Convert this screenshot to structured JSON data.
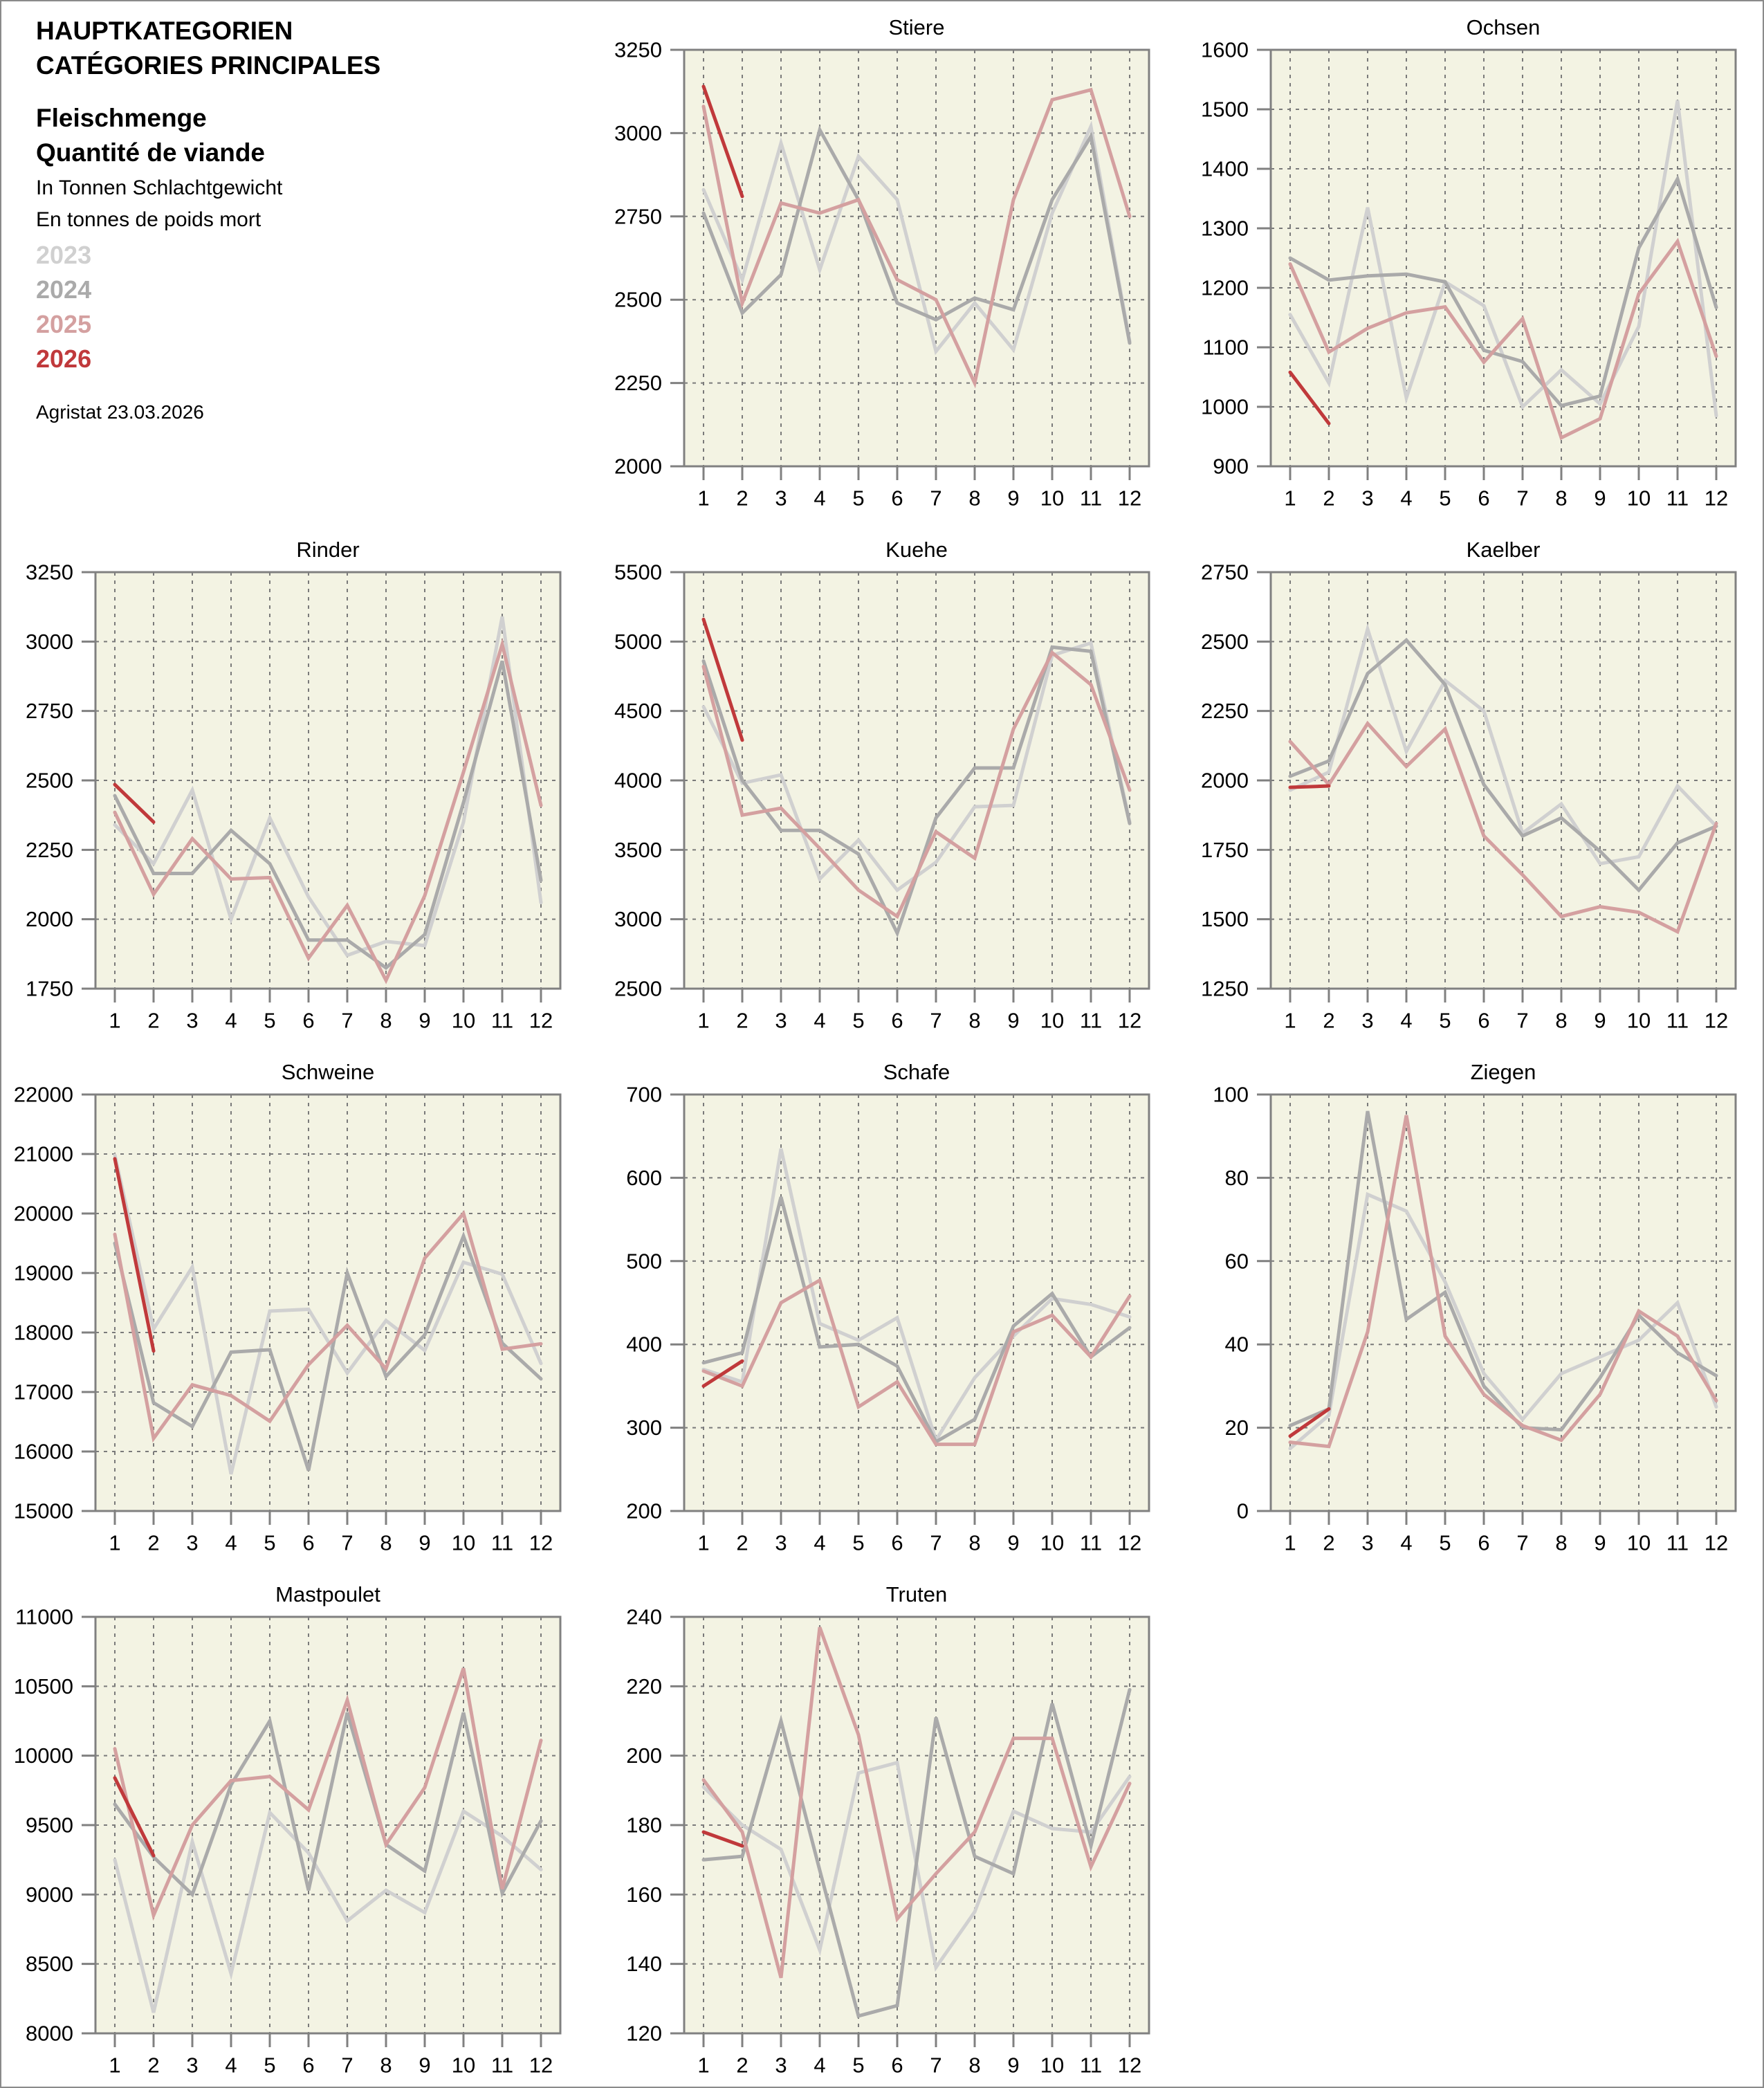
{
  "header": {
    "title_de": "HAUPTKATEGORIEN",
    "title_fr": "CATÉGORIES PRINCIPALES",
    "measure_de": "Fleischmenge",
    "measure_fr": "Quantité de viande",
    "unit_de": "In Tonnen Schlachtgewicht",
    "unit_fr": "En tonnes de poids mort",
    "source": "Agristat 23.03.2026"
  },
  "legend": [
    {
      "label": "2023",
      "color": "#d0d0d0"
    },
    {
      "label": "2024",
      "color": "#aaaaaa"
    },
    {
      "label": "2025",
      "color": "#d4a0a0"
    },
    {
      "label": "2026",
      "color": "#c0393b"
    }
  ],
  "colors": {
    "plot_background": "#f3f3e3",
    "axis": "#808080",
    "grid": "#7a7a7a"
  },
  "chart_data": [
    {
      "type": "line",
      "title": "Stiere",
      "xlabel": "",
      "ylabel": "",
      "categories": [
        "1",
        "2",
        "3",
        "4",
        "5",
        "6",
        "7",
        "8",
        "9",
        "10",
        "11",
        "12"
      ],
      "ylim": [
        2000,
        3250
      ],
      "yticks": [
        2000,
        2250,
        2500,
        2750,
        3000,
        3250
      ],
      "grid": true,
      "series": [
        {
          "name": "2023",
          "values": [
            2830,
            2560,
            2970,
            2590,
            2930,
            2800,
            2345,
            2490,
            2350,
            2760,
            3020,
            2375
          ]
        },
        {
          "name": "2024",
          "values": [
            2760,
            2460,
            2575,
            3010,
            2800,
            2490,
            2440,
            2505,
            2470,
            2800,
            2990,
            2370
          ]
        },
        {
          "name": "2025",
          "values": [
            3080,
            2490,
            2790,
            2760,
            2800,
            2560,
            2500,
            2250,
            2800,
            3100,
            3130,
            2750
          ]
        },
        {
          "name": "2026",
          "values": [
            3140,
            2810
          ]
        }
      ]
    },
    {
      "type": "line",
      "title": "Ochsen",
      "xlabel": "",
      "ylabel": "",
      "categories": [
        "1",
        "2",
        "3",
        "4",
        "5",
        "6",
        "7",
        "8",
        "9",
        "10",
        "11",
        "12"
      ],
      "ylim": [
        900,
        1600
      ],
      "yticks": [
        900,
        1000,
        1100,
        1200,
        1300,
        1400,
        1500,
        1600
      ],
      "grid": true,
      "series": [
        {
          "name": "2023",
          "values": [
            1155,
            1040,
            1335,
            1015,
            1210,
            1170,
            1000,
            1062,
            1005,
            1135,
            1515,
            985
          ]
        },
        {
          "name": "2024",
          "values": [
            1250,
            1213,
            1220,
            1223,
            1210,
            1095,
            1076,
            1002,
            1018,
            1267,
            1383,
            1167
          ]
        },
        {
          "name": "2025",
          "values": [
            1240,
            1092,
            1132,
            1158,
            1168,
            1075,
            1148,
            948,
            980,
            1190,
            1278,
            1085
          ]
        },
        {
          "name": "2026",
          "values": [
            1058,
            972
          ]
        }
      ]
    },
    {
      "type": "line",
      "title": "Rinder",
      "xlabel": "",
      "ylabel": "",
      "categories": [
        "1",
        "2",
        "3",
        "4",
        "5",
        "6",
        "7",
        "8",
        "9",
        "10",
        "11",
        "12"
      ],
      "ylim": [
        1750,
        3250
      ],
      "yticks": [
        1750,
        2000,
        2250,
        2500,
        2750,
        3000,
        3250
      ],
      "grid": true,
      "series": [
        {
          "name": "2023",
          "values": [
            2340,
            2200,
            2465,
            2000,
            2365,
            2080,
            1870,
            1920,
            1905,
            2350,
            3090,
            2060
          ]
        },
        {
          "name": "2024",
          "values": [
            2445,
            2165,
            2165,
            2320,
            2200,
            1925,
            1925,
            1825,
            1945,
            2420,
            2930,
            2140
          ]
        },
        {
          "name": "2025",
          "values": [
            2385,
            2090,
            2290,
            2145,
            2150,
            1860,
            2050,
            1780,
            2085,
            2530,
            2990,
            2410
          ]
        },
        {
          "name": "2026",
          "values": [
            2485,
            2350
          ]
        }
      ]
    },
    {
      "type": "line",
      "title": "Kuehe",
      "xlabel": "",
      "ylabel": "",
      "categories": [
        "1",
        "2",
        "3",
        "4",
        "5",
        "6",
        "7",
        "8",
        "9",
        "10",
        "11",
        "12"
      ],
      "ylim": [
        2500,
        5500
      ],
      "yticks": [
        2500,
        3000,
        3500,
        4000,
        4500,
        5000,
        5500
      ],
      "grid": true,
      "series": [
        {
          "name": "2023",
          "values": [
            4530,
            3980,
            4040,
            3290,
            3570,
            3210,
            3410,
            3810,
            3820,
            4900,
            4990,
            3700
          ]
        },
        {
          "name": "2024",
          "values": [
            4860,
            4000,
            3640,
            3640,
            3470,
            2900,
            3730,
            4090,
            4090,
            4960,
            4930,
            3690
          ]
        },
        {
          "name": "2025",
          "values": [
            4820,
            3750,
            3800,
            3510,
            3210,
            3020,
            3630,
            3440,
            4370,
            4920,
            4690,
            3930
          ]
        },
        {
          "name": "2026",
          "values": [
            5160,
            4290
          ]
        }
      ]
    },
    {
      "type": "line",
      "title": "Kaelber",
      "xlabel": "",
      "ylabel": "",
      "categories": [
        "1",
        "2",
        "3",
        "4",
        "5",
        "6",
        "7",
        "8",
        "9",
        "10",
        "11",
        "12"
      ],
      "ylim": [
        1250,
        2750
      ],
      "yticks": [
        1250,
        1500,
        1750,
        2000,
        2250,
        2500,
        2750
      ],
      "grid": true,
      "series": [
        {
          "name": "2023",
          "values": [
            1965,
            2030,
            2545,
            2105,
            2360,
            2250,
            1810,
            1915,
            1700,
            1725,
            1980,
            1835
          ]
        },
        {
          "name": "2024",
          "values": [
            2015,
            2070,
            2385,
            2505,
            2345,
            1985,
            1800,
            1865,
            1745,
            1605,
            1775,
            1835
          ]
        },
        {
          "name": "2025",
          "values": [
            2140,
            1985,
            2205,
            2050,
            2185,
            1800,
            1660,
            1510,
            1545,
            1525,
            1455,
            1845
          ]
        },
        {
          "name": "2026",
          "values": [
            1975,
            1980
          ]
        }
      ]
    },
    {
      "type": "line",
      "title": "Schweine",
      "xlabel": "",
      "ylabel": "",
      "categories": [
        "1",
        "2",
        "3",
        "4",
        "5",
        "6",
        "7",
        "8",
        "9",
        "10",
        "11",
        "12"
      ],
      "ylim": [
        15000,
        22000
      ],
      "yticks": [
        15000,
        16000,
        17000,
        18000,
        19000,
        20000,
        21000,
        22000
      ],
      "grid": true,
      "series": [
        {
          "name": "2023",
          "values": [
            20980,
            18060,
            19100,
            15620,
            18360,
            18390,
            17320,
            18200,
            17700,
            19180,
            18980,
            17480
          ]
        },
        {
          "name": "2024",
          "values": [
            19500,
            16820,
            16420,
            17670,
            17710,
            15680,
            19000,
            17260,
            17960,
            19620,
            17820,
            17220
          ]
        },
        {
          "name": "2025",
          "values": [
            19650,
            16220,
            17120,
            16940,
            16510,
            17460,
            18120,
            17390,
            19250,
            20000,
            17720,
            17810
          ]
        },
        {
          "name": "2026",
          "values": [
            20920,
            17690
          ]
        }
      ]
    },
    {
      "type": "line",
      "title": "Schafe",
      "xlabel": "",
      "ylabel": "",
      "categories": [
        "1",
        "2",
        "3",
        "4",
        "5",
        "6",
        "7",
        "8",
        "9",
        "10",
        "11",
        "12"
      ],
      "ylim": [
        200,
        700
      ],
      "yticks": [
        200,
        300,
        400,
        500,
        600,
        700
      ],
      "grid": true,
      "series": [
        {
          "name": "2023",
          "values": [
            370,
            355,
            635,
            425,
            405,
            432,
            285,
            360,
            410,
            455,
            448,
            433
          ]
        },
        {
          "name": "2024",
          "values": [
            378,
            390,
            577,
            397,
            400,
            374,
            283,
            310,
            422,
            461,
            385,
            420
          ]
        },
        {
          "name": "2025",
          "values": [
            368,
            350,
            450,
            477,
            325,
            355,
            280,
            280,
            415,
            435,
            385,
            458
          ]
        },
        {
          "name": "2026",
          "values": [
            350,
            380
          ]
        }
      ]
    },
    {
      "type": "line",
      "title": "Ziegen",
      "xlabel": "",
      "ylabel": "",
      "categories": [
        "1",
        "2",
        "3",
        "4",
        "5",
        "6",
        "7",
        "8",
        "9",
        "10",
        "11",
        "12"
      ],
      "ylim": [
        0,
        100
      ],
      "yticks": [
        0,
        20,
        40,
        60,
        80,
        100
      ],
      "grid": true,
      "series": [
        {
          "name": "2023",
          "values": [
            15,
            23,
            76,
            72,
            55,
            33,
            22,
            33,
            37,
            41,
            50,
            25
          ]
        },
        {
          "name": "2024",
          "values": [
            20.5,
            24.5,
            96,
            46,
            52.5,
            30,
            20,
            19.5,
            32,
            47,
            38,
            32.5
          ]
        },
        {
          "name": "2025",
          "values": [
            16.5,
            15.5,
            43,
            95,
            42,
            28,
            20.5,
            17,
            28,
            48,
            42,
            26.5
          ]
        },
        {
          "name": "2026",
          "values": [
            18,
            24.5
          ]
        }
      ]
    },
    {
      "type": "line",
      "title": "Mastpoulet",
      "xlabel": "",
      "ylabel": "",
      "categories": [
        "1",
        "2",
        "3",
        "4",
        "5",
        "6",
        "7",
        "8",
        "9",
        "10",
        "11",
        "12"
      ],
      "ylim": [
        8000,
        11000
      ],
      "yticks": [
        8000,
        8500,
        9000,
        9500,
        10000,
        10500,
        11000
      ],
      "grid": true,
      "series": [
        {
          "name": "2023",
          "values": [
            9250,
            8150,
            9380,
            8430,
            9590,
            9300,
            8810,
            9030,
            8870,
            9600,
            9420,
            9180
          ]
        },
        {
          "name": "2024",
          "values": [
            9650,
            9270,
            9000,
            9790,
            10250,
            9030,
            10310,
            9360,
            9170,
            10310,
            9010,
            9530
          ]
        },
        {
          "name": "2025",
          "values": [
            10050,
            8850,
            9500,
            9820,
            9850,
            9610,
            10400,
            9360,
            9770,
            10630,
            9040,
            10110
          ]
        },
        {
          "name": "2026",
          "values": [
            9840,
            9280
          ]
        }
      ]
    },
    {
      "type": "line",
      "title": "Truten",
      "xlabel": "",
      "ylabel": "",
      "categories": [
        "1",
        "2",
        "3",
        "4",
        "5",
        "6",
        "7",
        "8",
        "9",
        "10",
        "11",
        "12"
      ],
      "ylim": [
        120,
        240
      ],
      "yticks": [
        120,
        140,
        160,
        180,
        200,
        220,
        240
      ],
      "grid": true,
      "series": [
        {
          "name": "2023",
          "values": [
            191,
            180,
            173,
            144,
            195,
            198,
            139,
            155,
            184,
            179,
            178,
            194
          ]
        },
        {
          "name": "2024",
          "values": [
            170,
            171,
            210,
            167,
            125,
            128,
            211,
            171,
            166,
            215,
            174,
            219
          ]
        },
        {
          "name": "2025",
          "values": [
            193,
            178,
            136,
            237,
            206,
            153,
            166,
            178,
            205,
            205,
            168,
            192
          ]
        },
        {
          "name": "2026",
          "values": [
            178,
            174
          ]
        }
      ]
    }
  ]
}
